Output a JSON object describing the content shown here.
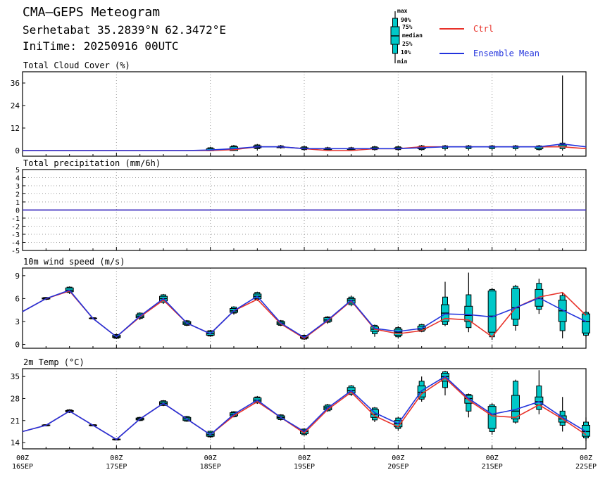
{
  "header": {
    "title": "CMA—GEPS Meteogram",
    "location": "Serhetabat 35.2839°N 62.3472°E",
    "init_time": "IniTime: 20250916 00UTC"
  },
  "legend": {
    "box_labels": [
      "max",
      "90%",
      "75%",
      "median",
      "25%",
      "10%",
      "min"
    ],
    "ctrl": "Ctrl",
    "mean": "Ensemble Mean"
  },
  "colors": {
    "ctrl": "#e8322a",
    "mean": "#2233dd",
    "box": "#00c8c8"
  },
  "x_axis": {
    "ticks": [
      {
        "l1": "00Z",
        "l2": "16SEP"
      },
      {
        "l1": "00Z",
        "l2": "17SEP"
      },
      {
        "l1": "00Z",
        "l2": "18SEP"
      },
      {
        "l1": "00Z",
        "l2": "19SEP"
      },
      {
        "l1": "00Z",
        "l2": "20SEP"
      },
      {
        "l1": "00Z",
        "l2": "21SEP"
      },
      {
        "l1": "00Z",
        "l2": "22SEP"
      }
    ],
    "step_hours": 6,
    "range_hours": [
      0,
      144
    ]
  },
  "chart_data": [
    {
      "type": "line",
      "title": "Total Cloud Cover (%)",
      "ylim": [
        -3,
        42
      ],
      "yticks": [
        0,
        12,
        24,
        36
      ],
      "grid": "dotted vertical at 00Z",
      "x_hours": [
        0,
        6,
        12,
        18,
        24,
        30,
        36,
        42,
        48,
        54,
        60,
        66,
        72,
        78,
        84,
        90,
        96,
        102,
        108,
        114,
        120,
        126,
        132,
        138,
        144
      ],
      "ctrl": [
        0,
        0,
        0,
        0,
        0,
        0,
        0,
        0,
        0,
        0.5,
        2,
        2,
        1,
        0,
        0,
        1,
        1,
        2,
        2,
        2,
        2,
        2,
        2,
        2,
        1
      ],
      "mean": [
        0,
        0,
        0,
        0,
        0,
        0,
        0,
        0,
        0.3,
        1,
        2,
        2,
        1,
        1,
        1,
        1,
        1,
        1.5,
        2,
        2,
        2,
        2,
        2,
        3.5,
        2
      ],
      "boxes": [
        {
          "h": 48,
          "min": 0,
          "p10": 0,
          "p25": 0,
          "med": 0,
          "p75": 1,
          "p90": 1.5,
          "max": 2
        },
        {
          "h": 54,
          "min": 0,
          "p10": 0,
          "p25": 0,
          "med": 1,
          "p75": 2,
          "p90": 2.5,
          "max": 3
        },
        {
          "h": 60,
          "min": 0,
          "p10": 1,
          "p25": 1.5,
          "med": 2,
          "p75": 2.5,
          "p90": 3,
          "max": 3.5
        },
        {
          "h": 66,
          "min": 1,
          "p10": 1.5,
          "p25": 1.5,
          "med": 2,
          "p75": 2,
          "p90": 2.5,
          "max": 3
        },
        {
          "h": 72,
          "min": 0,
          "p10": 0.5,
          "p25": 1,
          "med": 1,
          "p75": 1.5,
          "p90": 2,
          "max": 2.5
        },
        {
          "h": 78,
          "min": 0,
          "p10": 0,
          "p25": 0.5,
          "med": 1,
          "p75": 1,
          "p90": 1.5,
          "max": 2
        },
        {
          "h": 84,
          "min": 0,
          "p10": 0,
          "p25": 0.5,
          "med": 1,
          "p75": 1,
          "p90": 1.5,
          "max": 2
        },
        {
          "h": 90,
          "min": 0,
          "p10": 0.5,
          "p25": 1,
          "med": 1,
          "p75": 1.5,
          "p90": 2,
          "max": 2.5
        },
        {
          "h": 96,
          "min": 0,
          "p10": 0.5,
          "p25": 1,
          "med": 1,
          "p75": 1.5,
          "p90": 2,
          "max": 2.5
        },
        {
          "h": 102,
          "min": 0,
          "p10": 0.5,
          "p25": 1,
          "med": 1.5,
          "p75": 2,
          "p90": 2.5,
          "max": 3
        },
        {
          "h": 108,
          "min": 0,
          "p10": 1,
          "p25": 2,
          "med": 2,
          "p75": 2,
          "p90": 2.5,
          "max": 3
        },
        {
          "h": 114,
          "min": 0,
          "p10": 1,
          "p25": 2,
          "med": 2,
          "p75": 2,
          "p90": 2.5,
          "max": 3
        },
        {
          "h": 120,
          "min": 0,
          "p10": 1,
          "p25": 2,
          "med": 2,
          "p75": 2,
          "p90": 2.5,
          "max": 3
        },
        {
          "h": 126,
          "min": 0,
          "p10": 1,
          "p25": 2,
          "med": 2,
          "p75": 2,
          "p90": 2.5,
          "max": 3
        },
        {
          "h": 132,
          "min": 0,
          "p10": 0.5,
          "p25": 1,
          "med": 2,
          "p75": 2,
          "p90": 2.5,
          "max": 3
        },
        {
          "h": 138,
          "min": 0,
          "p10": 1,
          "p25": 2,
          "med": 2,
          "p75": 3,
          "p90": 4,
          "max": 40
        }
      ]
    },
    {
      "type": "line",
      "title": "Total precipitation (mm/6h)",
      "ylim": [
        -5,
        5
      ],
      "yticks": [
        -5,
        -4,
        -3,
        -2,
        -1,
        0,
        1,
        2,
        3,
        4,
        5
      ],
      "x_hours": [
        0,
        144
      ],
      "ctrl": [
        0,
        0
      ],
      "mean": [
        0,
        0
      ],
      "boxes": []
    },
    {
      "type": "line",
      "title": "10m wind speed (m/s)",
      "ylim": [
        -0.5,
        10
      ],
      "yticks": [
        0,
        3,
        6,
        9
      ],
      "x_hours": [
        0,
        6,
        12,
        18,
        24,
        30,
        36,
        42,
        48,
        54,
        60,
        66,
        72,
        78,
        84,
        90,
        96,
        102,
        108,
        114,
        120,
        126,
        132,
        138,
        144
      ],
      "ctrl": [
        4.3,
        6.0,
        7.0,
        3.4,
        1.0,
        3.6,
        5.8,
        2.8,
        1.4,
        4.4,
        5.9,
        2.7,
        0.8,
        3.1,
        5.7,
        2.0,
        1.4,
        1.8,
        3.4,
        3.2,
        1.0,
        4.8,
        6.2,
        6.8,
        3.8
      ],
      "mean": [
        4.3,
        6.0,
        7.1,
        3.4,
        1.0,
        3.7,
        6.0,
        2.8,
        1.4,
        4.4,
        6.3,
        2.8,
        0.9,
        3.2,
        5.8,
        2.1,
        1.7,
        2.1,
        4.0,
        3.9,
        3.6,
        4.8,
        6.1,
        4.5,
        3.0
      ],
      "boxes": [
        {
          "h": 6,
          "min": 5.8,
          "p10": 5.9,
          "p25": 5.95,
          "med": 6.0,
          "p75": 6.1,
          "p90": 6.15,
          "max": 6.2
        },
        {
          "h": 12,
          "min": 6.6,
          "p10": 6.8,
          "p25": 6.9,
          "med": 7.1,
          "p75": 7.4,
          "p90": 7.5,
          "max": 7.6
        },
        {
          "h": 18,
          "min": 3.3,
          "p10": 3.35,
          "p25": 3.4,
          "med": 3.4,
          "p75": 3.45,
          "p90": 3.5,
          "max": 3.5
        },
        {
          "h": 24,
          "min": 0.7,
          "p10": 0.8,
          "p25": 0.9,
          "med": 1.0,
          "p75": 1.2,
          "p90": 1.3,
          "max": 1.4
        },
        {
          "h": 30,
          "min": 3.2,
          "p10": 3.4,
          "p25": 3.5,
          "med": 3.7,
          "p75": 3.9,
          "p90": 4.1,
          "max": 4.2
        },
        {
          "h": 36,
          "min": 5.3,
          "p10": 5.5,
          "p25": 5.7,
          "med": 6.0,
          "p75": 6.3,
          "p90": 6.5,
          "max": 6.6
        },
        {
          "h": 42,
          "min": 2.4,
          "p10": 2.5,
          "p25": 2.6,
          "med": 2.8,
          "p75": 3.0,
          "p90": 3.1,
          "max": 3.2
        },
        {
          "h": 48,
          "min": 1.0,
          "p10": 1.1,
          "p25": 1.2,
          "med": 1.4,
          "p75": 1.7,
          "p90": 1.8,
          "max": 1.9
        },
        {
          "h": 54,
          "min": 3.9,
          "p10": 4.1,
          "p25": 4.2,
          "med": 4.4,
          "p75": 4.7,
          "p90": 4.9,
          "max": 5.0
        },
        {
          "h": 60,
          "min": 5.7,
          "p10": 5.9,
          "p25": 6.0,
          "med": 6.3,
          "p75": 6.6,
          "p90": 6.8,
          "max": 6.9
        },
        {
          "h": 66,
          "min": 2.4,
          "p10": 2.5,
          "p25": 2.6,
          "med": 2.8,
          "p75": 3.0,
          "p90": 3.1,
          "max": 3.2
        },
        {
          "h": 72,
          "min": 0.6,
          "p10": 0.7,
          "p25": 0.8,
          "med": 0.9,
          "p75": 1.1,
          "p90": 1.2,
          "max": 1.3
        },
        {
          "h": 78,
          "min": 2.7,
          "p10": 2.9,
          "p25": 3.0,
          "med": 3.2,
          "p75": 3.5,
          "p90": 3.6,
          "max": 3.7
        },
        {
          "h": 84,
          "min": 5.0,
          "p10": 5.2,
          "p25": 5.4,
          "med": 5.8,
          "p75": 6.0,
          "p90": 6.2,
          "max": 6.4
        },
        {
          "h": 90,
          "min": 1.0,
          "p10": 1.4,
          "p25": 1.7,
          "med": 2.0,
          "p75": 2.3,
          "p90": 2.5,
          "max": 2.6
        },
        {
          "h": 96,
          "min": 0.8,
          "p10": 1.0,
          "p25": 1.2,
          "med": 1.6,
          "p75": 2.0,
          "p90": 2.2,
          "max": 2.4
        },
        {
          "h": 102,
          "min": 1.6,
          "p10": 1.7,
          "p25": 1.9,
          "med": 2.1,
          "p75": 2.4,
          "p90": 2.6,
          "max": 2.7
        },
        {
          "h": 108,
          "min": 2.4,
          "p10": 2.6,
          "p25": 3.0,
          "med": 4.1,
          "p75": 5.2,
          "p90": 6.2,
          "max": 8.2
        },
        {
          "h": 114,
          "min": 1.6,
          "p10": 2.2,
          "p25": 3.0,
          "med": 3.8,
          "p75": 5.0,
          "p90": 6.5,
          "max": 9.4
        },
        {
          "h": 120,
          "min": 0.6,
          "p10": 1.0,
          "p25": 1.6,
          "med": 3.7,
          "p75": 7.0,
          "p90": 7.2,
          "max": 7.4
        },
        {
          "h": 126,
          "min": 1.8,
          "p10": 2.5,
          "p25": 3.3,
          "med": 4.8,
          "p75": 7.3,
          "p90": 7.6,
          "max": 7.8
        },
        {
          "h": 132,
          "min": 4.0,
          "p10": 4.6,
          "p25": 5.0,
          "med": 6.0,
          "p75": 7.2,
          "p90": 8.0,
          "max": 8.6
        },
        {
          "h": 138,
          "min": 0.8,
          "p10": 1.8,
          "p25": 3.0,
          "med": 4.4,
          "p75": 5.8,
          "p90": 6.4,
          "max": 6.8
        },
        {
          "h": 144,
          "min": 1.0,
          "p10": 1.2,
          "p25": 1.5,
          "med": 3.0,
          "p75": 4.0,
          "p90": 4.2,
          "max": 4.4
        }
      ]
    },
    {
      "type": "line",
      "title": "2m Temp (°C)",
      "ylim": [
        12,
        37.5
      ],
      "yticks": [
        14,
        21,
        28,
        35
      ],
      "x_hours": [
        0,
        6,
        12,
        18,
        24,
        30,
        36,
        42,
        48,
        54,
        60,
        66,
        72,
        78,
        84,
        90,
        96,
        102,
        108,
        114,
        120,
        126,
        132,
        138,
        144
      ],
      "ctrl": [
        17.5,
        19.5,
        24.0,
        19.5,
        15.0,
        21.5,
        26.5,
        21.5,
        16.5,
        22.5,
        27.0,
        22.0,
        17.0,
        24.5,
        30.0,
        22.5,
        19.0,
        29.5,
        34.5,
        27.5,
        22.5,
        22.0,
        26.0,
        21.5,
        16.5
      ],
      "mean": [
        17.5,
        19.5,
        24.0,
        19.5,
        15.0,
        21.5,
        26.5,
        21.5,
        16.5,
        23.0,
        27.5,
        22.0,
        17.5,
        25.0,
        30.5,
        23.5,
        20.0,
        30.5,
        35.0,
        28.0,
        23.0,
        24.5,
        27.0,
        22.0,
        17.5
      ],
      "boxes": [
        {
          "h": 6,
          "min": 19.2,
          "p10": 19.3,
          "p25": 19.4,
          "med": 19.5,
          "p75": 19.6,
          "p90": 19.7,
          "max": 19.8
        },
        {
          "h": 12,
          "min": 23.4,
          "p10": 23.6,
          "p25": 23.8,
          "med": 24.0,
          "p75": 24.2,
          "p90": 24.4,
          "max": 24.6
        },
        {
          "h": 18,
          "min": 19.2,
          "p10": 19.3,
          "p25": 19.4,
          "med": 19.5,
          "p75": 19.6,
          "p90": 19.7,
          "max": 19.8
        },
        {
          "h": 24,
          "min": 14.7,
          "p10": 14.8,
          "p25": 14.9,
          "med": 15.0,
          "p75": 15.1,
          "p90": 15.2,
          "max": 15.3
        },
        {
          "h": 30,
          "min": 20.8,
          "p10": 21.0,
          "p25": 21.2,
          "med": 21.5,
          "p75": 21.8,
          "p90": 22.0,
          "max": 22.2
        },
        {
          "h": 36,
          "min": 25.6,
          "p10": 25.8,
          "p25": 26.0,
          "med": 26.5,
          "p75": 27.0,
          "p90": 27.3,
          "max": 27.5
        },
        {
          "h": 42,
          "min": 20.6,
          "p10": 20.8,
          "p25": 21.0,
          "med": 21.5,
          "p75": 22.0,
          "p90": 22.3,
          "max": 22.5
        },
        {
          "h": 48,
          "min": 15.5,
          "p10": 15.8,
          "p25": 16.0,
          "med": 16.5,
          "p75": 17.2,
          "p90": 17.6,
          "max": 17.8
        },
        {
          "h": 54,
          "min": 22.0,
          "p10": 22.2,
          "p25": 22.5,
          "med": 23.0,
          "p75": 23.5,
          "p90": 23.8,
          "max": 24.0
        },
        {
          "h": 60,
          "min": 26.3,
          "p10": 26.6,
          "p25": 27.0,
          "med": 27.5,
          "p75": 28.2,
          "p90": 28.5,
          "max": 28.8
        },
        {
          "h": 66,
          "min": 21.0,
          "p10": 21.3,
          "p25": 21.6,
          "med": 22.0,
          "p75": 22.5,
          "p90": 22.8,
          "max": 23.0
        },
        {
          "h": 72,
          "min": 16.2,
          "p10": 16.5,
          "p25": 16.8,
          "med": 17.5,
          "p75": 18.0,
          "p90": 18.3,
          "max": 18.5
        },
        {
          "h": 78,
          "min": 23.8,
          "p10": 24.1,
          "p25": 24.4,
          "med": 25.0,
          "p75": 25.6,
          "p90": 26.0,
          "max": 26.3
        },
        {
          "h": 84,
          "min": 28.8,
          "p10": 29.3,
          "p25": 29.8,
          "med": 30.5,
          "p75": 31.5,
          "p90": 32.0,
          "max": 32.3
        },
        {
          "h": 90,
          "min": 20.5,
          "p10": 21.2,
          "p25": 22.0,
          "med": 23.0,
          "p75": 24.5,
          "p90": 25.0,
          "max": 25.3
        },
        {
          "h": 96,
          "min": 17.8,
          "p10": 18.5,
          "p25": 19.0,
          "med": 20.0,
          "p75": 21.0,
          "p90": 21.8,
          "max": 22.2
        },
        {
          "h": 102,
          "min": 27.0,
          "p10": 27.8,
          "p25": 28.5,
          "med": 30.0,
          "p75": 32.0,
          "p90": 33.5,
          "max": 35.0
        },
        {
          "h": 108,
          "min": 29.0,
          "p10": 31.5,
          "p25": 33.5,
          "med": 35.0,
          "p75": 36.0,
          "p90": 36.5,
          "max": 36.8
        },
        {
          "h": 114,
          "min": 22.0,
          "p10": 24.0,
          "p25": 26.5,
          "med": 28.0,
          "p75": 29.0,
          "p90": 29.3,
          "max": 29.6
        },
        {
          "h": 120,
          "min": 16.5,
          "p10": 17.5,
          "p25": 18.5,
          "med": 23.0,
          "p75": 25.5,
          "p90": 26.0,
          "max": 26.5
        },
        {
          "h": 126,
          "min": 20.0,
          "p10": 20.5,
          "p25": 21.5,
          "med": 24.0,
          "p75": 29.0,
          "p90": 33.5,
          "max": 34.0
        },
        {
          "h": 132,
          "min": 23.0,
          "p10": 24.5,
          "p25": 26.0,
          "med": 27.0,
          "p75": 28.5,
          "p90": 32.0,
          "max": 37.0
        },
        {
          "h": 138,
          "min": 17.5,
          "p10": 19.5,
          "p25": 20.5,
          "med": 21.5,
          "p75": 22.5,
          "p90": 24.0,
          "max": 28.5
        },
        {
          "h": 144,
          "min": 14.5,
          "p10": 15.5,
          "p25": 16.0,
          "med": 17.5,
          "p75": 19.5,
          "p90": 20.5,
          "max": 22.0
        }
      ]
    }
  ]
}
